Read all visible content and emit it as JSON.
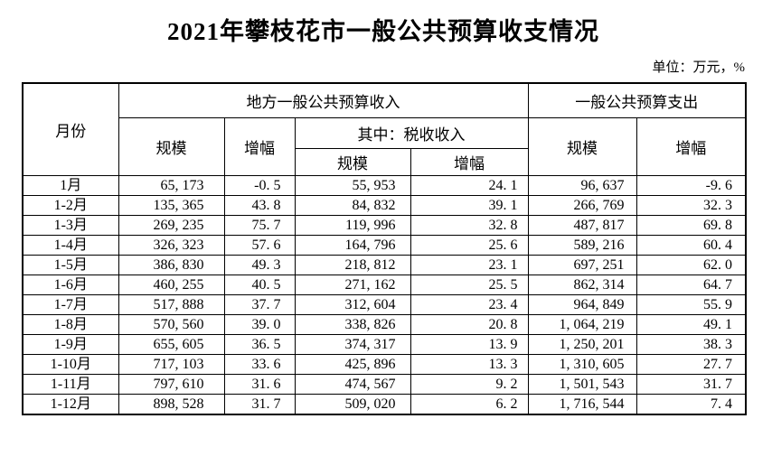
{
  "page": {
    "title": "2021年攀枝花市一般公共预算收支情况",
    "unit_note": "单位：万元，%"
  },
  "table": {
    "header": {
      "month": "月份",
      "revenue_group": "地方一般公共预算收入",
      "expenditure_group": "一般公共预算支出",
      "tax_subgroup": "其中：税收收入",
      "scale": "规模",
      "growth": "增幅"
    },
    "rows": [
      {
        "month": "1月",
        "rev_scale": "65, 173",
        "rev_growth": "-0. 5",
        "tax_scale": "55, 953",
        "tax_growth": "24. 1",
        "exp_scale": "96, 637",
        "exp_growth": "-9. 6"
      },
      {
        "month": "1-2月",
        "rev_scale": "135, 365",
        "rev_growth": "43. 8",
        "tax_scale": "84, 832",
        "tax_growth": "39. 1",
        "exp_scale": "266, 769",
        "exp_growth": "32. 3"
      },
      {
        "month": "1-3月",
        "rev_scale": "269, 235",
        "rev_growth": "75. 7",
        "tax_scale": "119, 996",
        "tax_growth": "32. 8",
        "exp_scale": "487, 817",
        "exp_growth": "69. 8"
      },
      {
        "month": "1-4月",
        "rev_scale": "326, 323",
        "rev_growth": "57. 6",
        "tax_scale": "164, 796",
        "tax_growth": "25. 6",
        "exp_scale": "589, 216",
        "exp_growth": "60. 4"
      },
      {
        "month": "1-5月",
        "rev_scale": "386, 830",
        "rev_growth": "49. 3",
        "tax_scale": "218, 812",
        "tax_growth": "23. 1",
        "exp_scale": "697, 251",
        "exp_growth": "62. 0"
      },
      {
        "month": "1-6月",
        "rev_scale": "460, 255",
        "rev_growth": "40. 5",
        "tax_scale": "271, 162",
        "tax_growth": "25. 5",
        "exp_scale": "862, 314",
        "exp_growth": "64. 7"
      },
      {
        "month": "1-7月",
        "rev_scale": "517, 888",
        "rev_growth": "37. 7",
        "tax_scale": "312, 604",
        "tax_growth": "23. 4",
        "exp_scale": "964, 849",
        "exp_growth": "55. 9"
      },
      {
        "month": "1-8月",
        "rev_scale": "570, 560",
        "rev_growth": "39. 0",
        "tax_scale": "338, 826",
        "tax_growth": "20. 8",
        "exp_scale": "1, 064, 219",
        "exp_growth": "49. 1"
      },
      {
        "month": "1-9月",
        "rev_scale": "655, 605",
        "rev_growth": "36. 5",
        "tax_scale": "374, 317",
        "tax_growth": "13. 9",
        "exp_scale": "1, 250, 201",
        "exp_growth": "38. 3"
      },
      {
        "month": "1-10月",
        "rev_scale": "717, 103",
        "rev_growth": "33. 6",
        "tax_scale": "425, 896",
        "tax_growth": "13. 3",
        "exp_scale": "1, 310, 605",
        "exp_growth": "27. 7"
      },
      {
        "month": "1-11月",
        "rev_scale": "797, 610",
        "rev_growth": "31. 6",
        "tax_scale": "474, 567",
        "tax_growth": "9. 2",
        "exp_scale": "1, 501, 543",
        "exp_growth": "31. 7"
      },
      {
        "month": "1-12月",
        "rev_scale": "898, 528",
        "rev_growth": "31. 7",
        "tax_scale": "509, 020",
        "tax_growth": "6. 2",
        "exp_scale": "1, 716, 544",
        "exp_growth": "7. 4"
      }
    ]
  },
  "chart_data": {
    "type": "table",
    "title": "2021年攀枝花市一般公共预算收支情况",
    "unit": "万元，%",
    "columns": [
      "月份",
      "地方一般公共预算收入-规模",
      "地方一般公共预算收入-增幅",
      "其中：税收收入-规模",
      "其中：税收收入-增幅",
      "一般公共预算支出-规模",
      "一般公共预算支出-增幅"
    ],
    "rows": [
      [
        "1月",
        65173,
        -0.5,
        55953,
        24.1,
        96637,
        -9.6
      ],
      [
        "1-2月",
        135365,
        43.8,
        84832,
        39.1,
        266769,
        32.3
      ],
      [
        "1-3月",
        269235,
        75.7,
        119996,
        32.8,
        487817,
        69.8
      ],
      [
        "1-4月",
        326323,
        57.6,
        164796,
        25.6,
        589216,
        60.4
      ],
      [
        "1-5月",
        386830,
        49.3,
        218812,
        23.1,
        697251,
        62.0
      ],
      [
        "1-6月",
        460255,
        40.5,
        271162,
        25.5,
        862314,
        64.7
      ],
      [
        "1-7月",
        517888,
        37.7,
        312604,
        23.4,
        964849,
        55.9
      ],
      [
        "1-8月",
        570560,
        39.0,
        338826,
        20.8,
        1064219,
        49.1
      ],
      [
        "1-9月",
        655605,
        36.5,
        374317,
        13.9,
        1250201,
        38.3
      ],
      [
        "1-10月",
        717103,
        33.6,
        425896,
        13.3,
        1310605,
        27.7
      ],
      [
        "1-11月",
        797610,
        31.6,
        474567,
        9.2,
        1501543,
        31.7
      ],
      [
        "1-12月",
        898528,
        31.7,
        509020,
        6.2,
        1716544,
        7.4
      ]
    ]
  }
}
